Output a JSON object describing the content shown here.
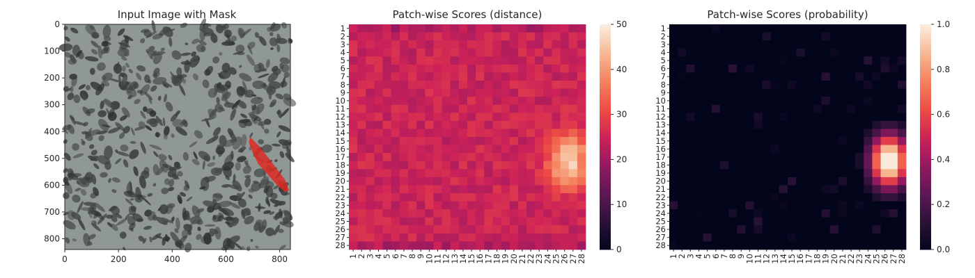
{
  "chart_data": [
    {
      "type": "image",
      "title": "Input Image with Mask",
      "x_ticks": [
        "0",
        "200",
        "400",
        "600",
        "800"
      ],
      "y_ticks": [
        "0",
        "100",
        "200",
        "300",
        "400",
        "500",
        "600",
        "700",
        "800"
      ],
      "xlim": [
        0,
        840
      ],
      "ylim": [
        840,
        0
      ]
    },
    {
      "type": "heatmap",
      "title": "Patch-wise Scores (distance)",
      "rows": 28,
      "cols": 28,
      "row_labels": [
        "1",
        "2",
        "3",
        "4",
        "5",
        "6",
        "7",
        "8",
        "9",
        "10",
        "11",
        "12",
        "13",
        "14",
        "15",
        "16",
        "17",
        "18",
        "19",
        "20",
        "21",
        "22",
        "23",
        "24",
        "25",
        "26",
        "27",
        "28"
      ],
      "col_labels": [
        "1",
        "2",
        "3",
        "4",
        "5",
        "6",
        "7",
        "8",
        "9",
        "10",
        "11",
        "12",
        "13",
        "14",
        "15",
        "16",
        "17",
        "18",
        "19",
        "20",
        "21",
        "22",
        "23",
        "24",
        "25",
        "26",
        "27",
        "28"
      ],
      "colorbar": {
        "min": 0,
        "max": 50,
        "ticks": [
          "0",
          "10",
          "20",
          "30",
          "40",
          "50"
        ]
      },
      "base_value": 25,
      "hotspot": {
        "center_row": 17.5,
        "center_col": 26.5,
        "peak": 50
      }
    },
    {
      "type": "heatmap",
      "title": "Patch-wise Scores (probability)",
      "rows": 28,
      "cols": 28,
      "row_labels": [
        "1",
        "2",
        "3",
        "4",
        "5",
        "6",
        "7",
        "8",
        "9",
        "10",
        "11",
        "12",
        "13",
        "14",
        "15",
        "16",
        "17",
        "18",
        "19",
        "20",
        "21",
        "22",
        "23",
        "24",
        "25",
        "26",
        "27",
        "28"
      ],
      "col_labels": [
        "1",
        "2",
        "3",
        "4",
        "5",
        "6",
        "7",
        "8",
        "9",
        "10",
        "11",
        "12",
        "13",
        "14",
        "15",
        "16",
        "17",
        "18",
        "19",
        "20",
        "21",
        "22",
        "23",
        "24",
        "25",
        "26",
        "27",
        "28"
      ],
      "colorbar": {
        "min": 0.0,
        "max": 1.0,
        "ticks": [
          "0.0",
          "0.2",
          "0.4",
          "0.6",
          "0.8",
          "1.0"
        ]
      },
      "base_value": 0.0,
      "hotspot": {
        "center_row": 17.5,
        "center_col": 26.5,
        "peak": 1.0
      }
    }
  ]
}
